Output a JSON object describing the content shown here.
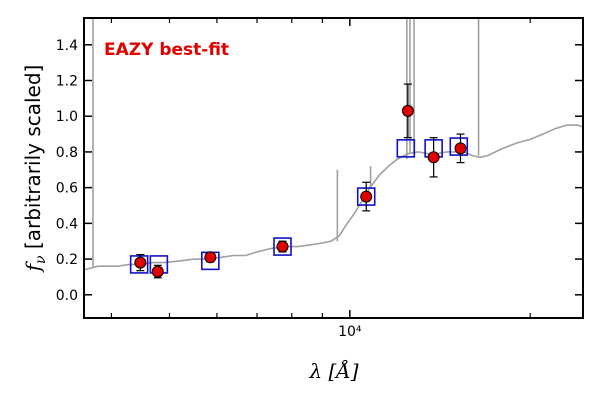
{
  "chart_data": {
    "type": "scatter",
    "annotation": "EAZY best-fit",
    "xlabel": "λ [Å]",
    "ylabel": "f_ν [arbitrarily scaled]",
    "ylabel_symbol": "f",
    "ylabel_subscript": "ν",
    "ylabel_text": " [arbitrarily scaled]",
    "xlabel_symbol": "λ",
    "xlabel_unit": " [Å]",
    "x_scale": "log",
    "xlim": [
      3600,
      24500
    ],
    "ylim": [
      -0.13,
      1.55
    ],
    "yticks": [
      0.0,
      0.2,
      0.4,
      0.6,
      0.8,
      1.0,
      1.2,
      1.4
    ],
    "ytick_labels": [
      "0.0",
      "0.2",
      "0.4",
      "0.6",
      "0.8",
      "1.0",
      "1.2",
      "1.4"
    ],
    "xtick_major": [
      10000
    ],
    "xtick_major_labels": [
      "10⁴"
    ],
    "xtick_minor": [
      4000,
      5000,
      6000,
      7000,
      8000,
      9000,
      20000
    ],
    "grid": false,
    "colors": {
      "observed": "#e00000",
      "model_box": "#1010cc",
      "template": "#a0a0a0",
      "annotation": "#e00000"
    },
    "series": [
      {
        "role": "observed-photometry",
        "points": [
          {
            "x": 4470,
            "y": 0.18,
            "err": 0.045
          },
          {
            "x": 4780,
            "y": 0.13,
            "err": 0.035
          },
          {
            "x": 5850,
            "y": 0.21,
            "err": 0.025
          },
          {
            "x": 7720,
            "y": 0.27,
            "err": 0.03
          },
          {
            "x": 10650,
            "y": 0.55,
            "err": 0.08
          },
          {
            "x": 12500,
            "y": 1.03,
            "err": 0.15
          },
          {
            "x": 13800,
            "y": 0.77,
            "err": 0.11
          },
          {
            "x": 15300,
            "y": 0.82,
            "err": 0.08
          }
        ]
      },
      {
        "role": "model-photometry",
        "points": [
          {
            "x": 4450,
            "y": 0.17
          },
          {
            "x": 4800,
            "y": 0.17
          },
          {
            "x": 5850,
            "y": 0.19
          },
          {
            "x": 7720,
            "y": 0.27
          },
          {
            "x": 10650,
            "y": 0.55
          },
          {
            "x": 12400,
            "y": 0.82
          },
          {
            "x": 13800,
            "y": 0.82
          },
          {
            "x": 15200,
            "y": 0.83
          }
        ]
      },
      {
        "role": "template-spectrum",
        "points": [
          {
            "x": 3600,
            "y": 0.14
          },
          {
            "x": 3700,
            "y": 0.15
          },
          {
            "x": 3800,
            "y": 0.16
          },
          {
            "x": 3950,
            "y": 0.16
          },
          {
            "x": 4100,
            "y": 0.16
          },
          {
            "x": 4300,
            "y": 0.17
          },
          {
            "x": 4500,
            "y": 0.17
          },
          {
            "x": 4700,
            "y": 0.18
          },
          {
            "x": 4900,
            "y": 0.18
          },
          {
            "x": 5200,
            "y": 0.19
          },
          {
            "x": 5500,
            "y": 0.2
          },
          {
            "x": 5800,
            "y": 0.2
          },
          {
            "x": 6100,
            "y": 0.21
          },
          {
            "x": 6400,
            "y": 0.22
          },
          {
            "x": 6700,
            "y": 0.22
          },
          {
            "x": 7000,
            "y": 0.24
          },
          {
            "x": 7400,
            "y": 0.26
          },
          {
            "x": 7800,
            "y": 0.27
          },
          {
            "x": 8200,
            "y": 0.27
          },
          {
            "x": 8600,
            "y": 0.28
          },
          {
            "x": 9000,
            "y": 0.29
          },
          {
            "x": 9300,
            "y": 0.3
          },
          {
            "x": 9600,
            "y": 0.33
          },
          {
            "x": 9900,
            "y": 0.4
          },
          {
            "x": 10200,
            "y": 0.46
          },
          {
            "x": 10500,
            "y": 0.53
          },
          {
            "x": 10800,
            "y": 0.6
          },
          {
            "x": 11200,
            "y": 0.67
          },
          {
            "x": 11600,
            "y": 0.72
          },
          {
            "x": 12000,
            "y": 0.76
          },
          {
            "x": 12500,
            "y": 0.79
          },
          {
            "x": 13000,
            "y": 0.8
          },
          {
            "x": 13500,
            "y": 0.79
          },
          {
            "x": 14000,
            "y": 0.79
          },
          {
            "x": 14500,
            "y": 0.8
          },
          {
            "x": 15000,
            "y": 0.8
          },
          {
            "x": 15500,
            "y": 0.8
          },
          {
            "x": 16000,
            "y": 0.78
          },
          {
            "x": 16500,
            "y": 0.77
          },
          {
            "x": 17000,
            "y": 0.78
          },
          {
            "x": 17500,
            "y": 0.8
          },
          {
            "x": 18000,
            "y": 0.82
          },
          {
            "x": 19000,
            "y": 0.85
          },
          {
            "x": 20000,
            "y": 0.87
          },
          {
            "x": 21000,
            "y": 0.9
          },
          {
            "x": 22000,
            "y": 0.93
          },
          {
            "x": 23000,
            "y": 0.95
          },
          {
            "x": 24000,
            "y": 0.95
          },
          {
            "x": 24500,
            "y": 0.94
          }
        ]
      },
      {
        "role": "template-emission-lines",
        "points": [
          {
            "x": 3727,
            "y": 1.55
          },
          {
            "x": 9532,
            "y": 0.7
          },
          {
            "x": 10830,
            "y": 0.72
          },
          {
            "x": 12450,
            "y": 1.55
          },
          {
            "x": 12600,
            "y": 1.55
          },
          {
            "x": 12800,
            "y": 1.55
          },
          {
            "x": 16400,
            "y": 1.55
          }
        ]
      }
    ]
  }
}
